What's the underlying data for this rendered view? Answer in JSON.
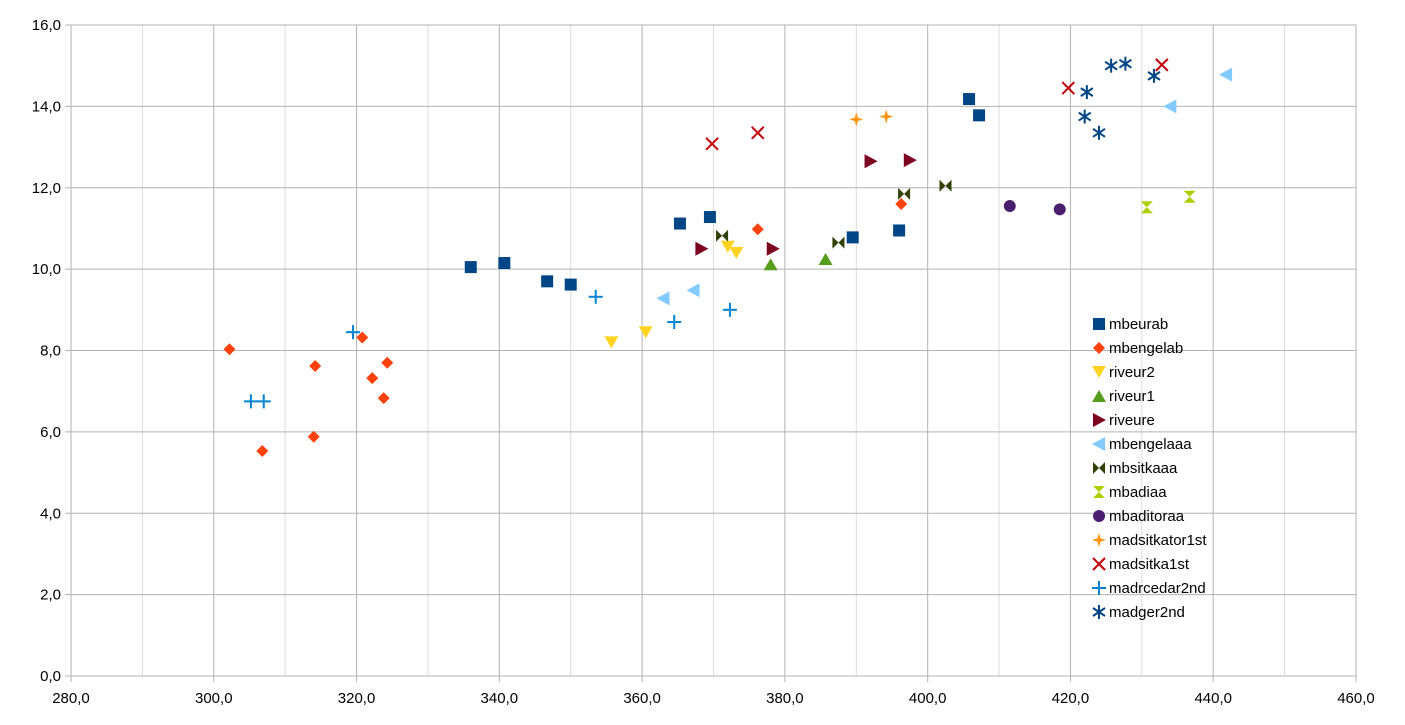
{
  "chart_data": {
    "type": "scatter",
    "title": "",
    "xlabel": "",
    "ylabel": "",
    "xlim": [
      280,
      460
    ],
    "ylim": [
      0,
      16
    ],
    "x_ticks": [
      280,
      300,
      320,
      340,
      360,
      380,
      400,
      420,
      440,
      460
    ],
    "y_ticks": [
      0,
      2,
      4,
      6,
      8,
      10,
      12,
      14,
      16
    ],
    "x_tick_labels": [
      "280,0",
      "300,0",
      "320,0",
      "340,0",
      "360,0",
      "380,0",
      "400,0",
      "420,0",
      "440,0",
      "460,0"
    ],
    "y_tick_labels": [
      "0,0",
      "2,0",
      "4,0",
      "6,0",
      "8,0",
      "10,0",
      "12,0",
      "14,0",
      "16,0"
    ],
    "grid": true,
    "legend_position": "right",
    "series": [
      {
        "name": "mbeurab",
        "marker": "square",
        "color": "#004586",
        "points": [
          [
            336.0,
            10.05
          ],
          [
            340.7,
            10.15
          ],
          [
            346.7,
            9.7
          ],
          [
            350.0,
            9.62
          ],
          [
            365.3,
            11.12
          ],
          [
            369.5,
            11.28
          ],
          [
            389.5,
            10.78
          ],
          [
            396.0,
            10.95
          ],
          [
            405.8,
            14.18
          ],
          [
            407.2,
            13.78
          ]
        ]
      },
      {
        "name": "mbengelab",
        "marker": "diamond",
        "color": "#ff420e",
        "points": [
          [
            302.2,
            8.03
          ],
          [
            306.8,
            5.53
          ],
          [
            314.0,
            5.88
          ],
          [
            314.2,
            7.62
          ],
          [
            320.8,
            8.32
          ],
          [
            322.2,
            7.32
          ],
          [
            323.8,
            6.83
          ],
          [
            324.3,
            7.7
          ],
          [
            376.2,
            10.98
          ],
          [
            396.3,
            11.6
          ]
        ]
      },
      {
        "name": "riveur2",
        "marker": "triangle-down",
        "color": "#ffd320",
        "points": [
          [
            355.7,
            8.2
          ],
          [
            360.5,
            8.45
          ],
          [
            372.0,
            10.55
          ],
          [
            373.2,
            10.4
          ]
        ]
      },
      {
        "name": "riveur1",
        "marker": "triangle-up",
        "color": "#579d1c",
        "points": [
          [
            378.0,
            10.12
          ],
          [
            385.7,
            10.25
          ]
        ]
      },
      {
        "name": "riveure",
        "marker": "triangle-right",
        "color": "#7e0021",
        "points": [
          [
            368.3,
            10.5
          ],
          [
            378.3,
            10.5
          ],
          [
            392.0,
            12.65
          ],
          [
            397.5,
            12.68
          ]
        ]
      },
      {
        "name": "mbengelaaa",
        "marker": "triangle-left",
        "color": "#83caff",
        "points": [
          [
            363.0,
            9.28
          ],
          [
            367.2,
            9.48
          ],
          [
            434.0,
            14.0
          ],
          [
            441.8,
            14.78
          ]
        ]
      },
      {
        "name": "mbsitkaaa",
        "marker": "bowtie",
        "color": "#314004",
        "points": [
          [
            371.2,
            10.82
          ],
          [
            387.5,
            10.65
          ],
          [
            396.7,
            11.85
          ],
          [
            402.5,
            12.05
          ]
        ]
      },
      {
        "name": "mbadiaa",
        "marker": "hourglass",
        "color": "#aecf00",
        "points": [
          [
            430.7,
            11.52
          ],
          [
            436.7,
            11.78
          ]
        ]
      },
      {
        "name": "mbaditoraa",
        "marker": "circle",
        "color": "#4b1f6f",
        "points": [
          [
            411.5,
            11.55
          ],
          [
            418.5,
            11.47
          ]
        ]
      },
      {
        "name": "madsitkator1st",
        "marker": "star4",
        "color": "#ff950e",
        "points": [
          [
            390.0,
            13.68
          ],
          [
            394.2,
            13.75
          ]
        ]
      },
      {
        "name": "madsitka1st",
        "marker": "x",
        "color": "#c5000b",
        "points": [
          [
            369.8,
            13.08
          ],
          [
            376.2,
            13.35
          ],
          [
            419.7,
            14.45
          ],
          [
            432.8,
            15.02
          ]
        ]
      },
      {
        "name": "madrcedar2nd",
        "marker": "plus",
        "color": "#0084d1",
        "points": [
          [
            305.2,
            6.75
          ],
          [
            307.0,
            6.75
          ],
          [
            319.5,
            8.45
          ],
          [
            353.5,
            9.32
          ],
          [
            364.5,
            8.7
          ],
          [
            372.3,
            9.0
          ]
        ]
      },
      {
        "name": "madger2nd",
        "marker": "asterisk",
        "color": "#004586",
        "points": [
          [
            422.0,
            13.75
          ],
          [
            422.3,
            14.35
          ],
          [
            424.0,
            13.35
          ],
          [
            425.7,
            15.0
          ],
          [
            427.7,
            15.05
          ],
          [
            431.7,
            14.75
          ]
        ]
      }
    ]
  }
}
